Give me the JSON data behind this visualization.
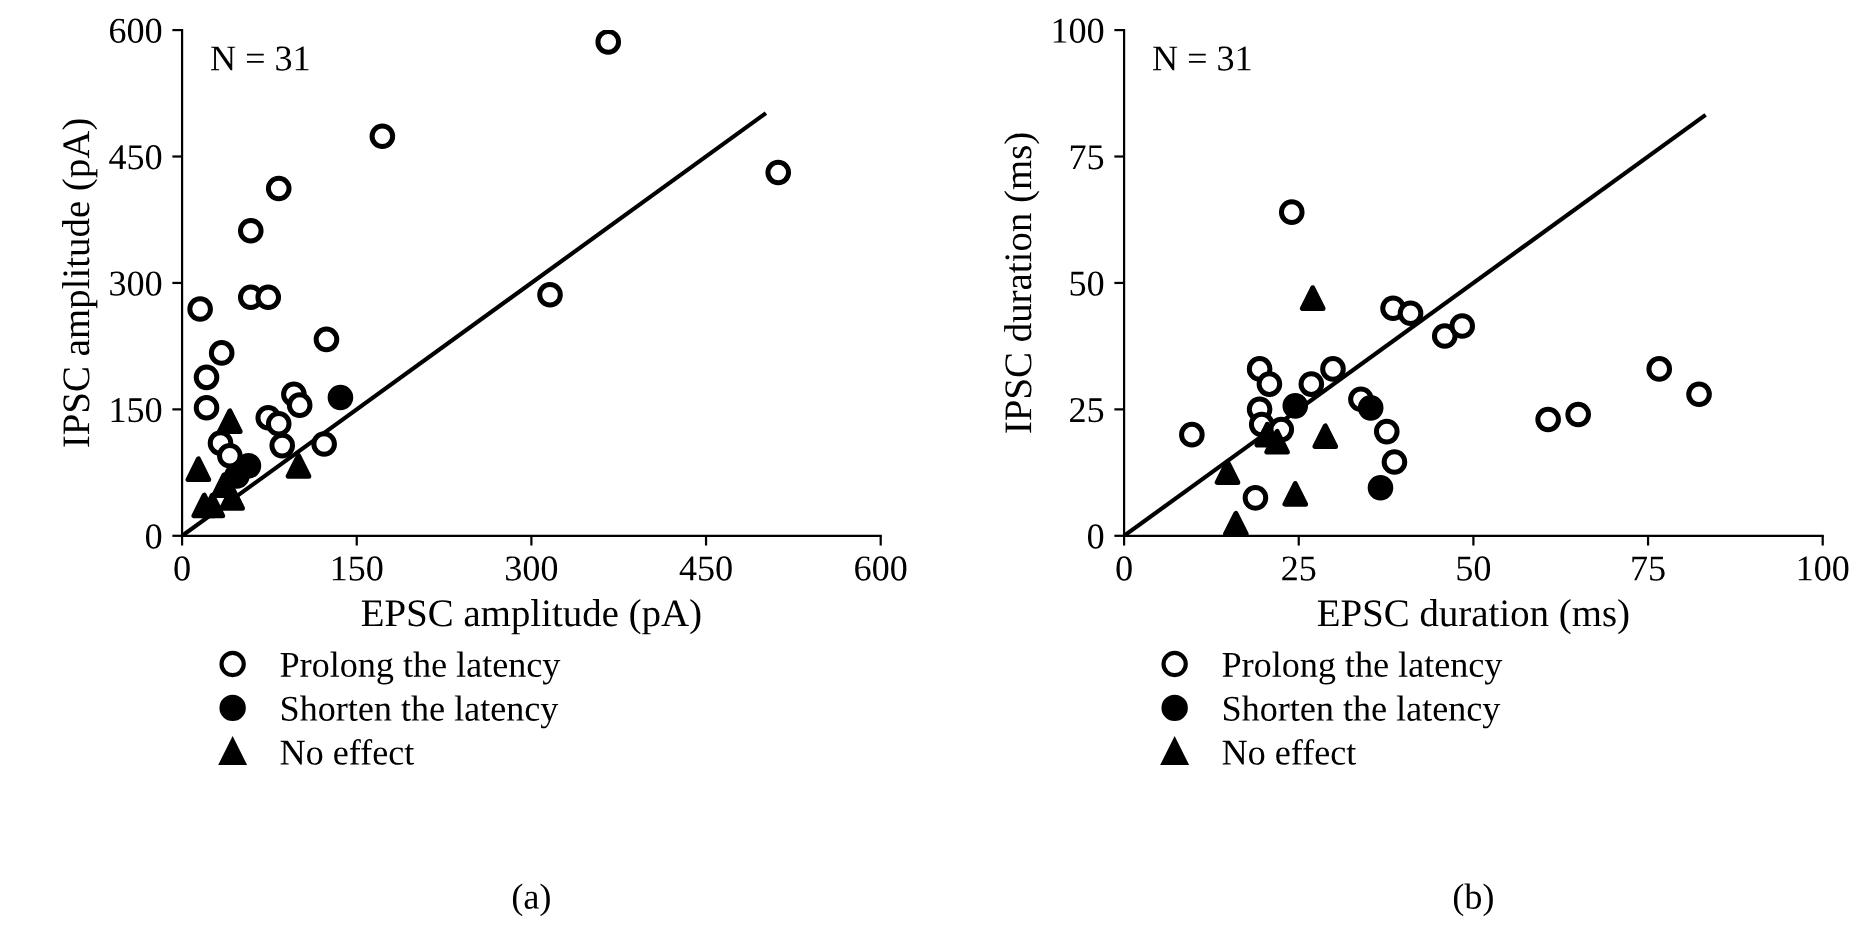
{
  "chart_data": [
    {
      "type": "scatter",
      "xlabel": "EPSC amplitude (pA)",
      "ylabel": "IPSC amplitude (pA)",
      "annotations": [
        "N = 31",
        "(a)"
      ],
      "xlim": [
        0,
        600
      ],
      "ylim": [
        0,
        600
      ],
      "xticks": [
        0,
        150,
        300,
        450,
        600
      ],
      "yticks": [
        0,
        150,
        300,
        450,
        600
      ],
      "grid": false,
      "legend": "bottom left",
      "series": [
        {
          "name": "Prolong the latency",
          "marker": "circle",
          "color": "#ffffff",
          "x": [
            15.5,
            21,
            21,
            34,
            33,
            41,
            59,
            59,
            74,
            83,
            74,
            83,
            96,
            101,
            86,
            122,
            124,
            172,
            366,
            512,
            316
          ],
          "values": [
            269,
            188,
            152,
            217,
            110,
            95,
            283,
            362,
            283,
            412,
            140,
            133,
            168,
            155,
            107,
            109,
            233,
            474,
            586,
            431,
            286
          ]
        },
        {
          "name": "Shorten the latency",
          "marker": "circle",
          "color": "#000000",
          "x": [
            136,
            57,
            47
          ],
          "values": [
            164,
            83,
            71
          ]
        },
        {
          "name": "No effect",
          "marker": "triangle",
          "color": "#000000",
          "x": [
            14,
            41,
            100,
            19,
            26,
            43,
            36
          ],
          "values": [
            79,
            136,
            83,
            36,
            36,
            45,
            60
          ]
        },
        {
          "type": "line",
          "line_style": "solid",
          "color": "#000000",
          "x": [
            0,
            500
          ],
          "values": [
            0,
            500
          ]
        }
      ]
    },
    {
      "type": "scatter",
      "xlabel": "EPSC duration (ms)",
      "ylabel": "IPSC duration (ms)",
      "annotations": [
        "N = 31",
        "(b)"
      ],
      "xlim": [
        0,
        100
      ],
      "ylim": [
        0,
        100
      ],
      "xticks": [
        0,
        25,
        50,
        75,
        100
      ],
      "yticks": [
        0,
        25,
        50,
        75,
        100
      ],
      "grid": false,
      "legend": "bottom left",
      "series": [
        {
          "name": "Prolong the latency",
          "marker": "circle",
          "color": "#ffffff",
          "x": [
            9.7,
            24,
            19.4,
            20.8,
            19.4,
            19.7,
            22.5,
            18.8,
            26.8,
            29.9,
            38.5,
            41,
            45.9,
            48.4,
            33.9,
            37.6,
            38.7,
            60.7,
            65,
            76.6,
            82.3
          ],
          "values": [
            20,
            64,
            33,
            30,
            25,
            22,
            21,
            7.5,
            30,
            33,
            45,
            44,
            39.5,
            41.5,
            27,
            20.6,
            14.6,
            23,
            24,
            33,
            28
          ]
        },
        {
          "name": "Shorten the latency",
          "marker": "circle",
          "color": "#000000",
          "x": [
            24.5,
            35.3,
            36.7
          ],
          "values": [
            25.7,
            25.3,
            9.5
          ]
        },
        {
          "name": "No effect",
          "marker": "triangle",
          "color": "#000000",
          "x": [
            14.8,
            16,
            21.9,
            20.5,
            24.5,
            27,
            28.8
          ],
          "values": [
            12.6,
            2.4,
            18.6,
            20,
            8.3,
            47,
            19.7
          ]
        },
        {
          "type": "line",
          "line_style": "solid",
          "color": "#000000",
          "x": [
            0,
            83
          ],
          "values": [
            0,
            83
          ]
        }
      ]
    }
  ]
}
